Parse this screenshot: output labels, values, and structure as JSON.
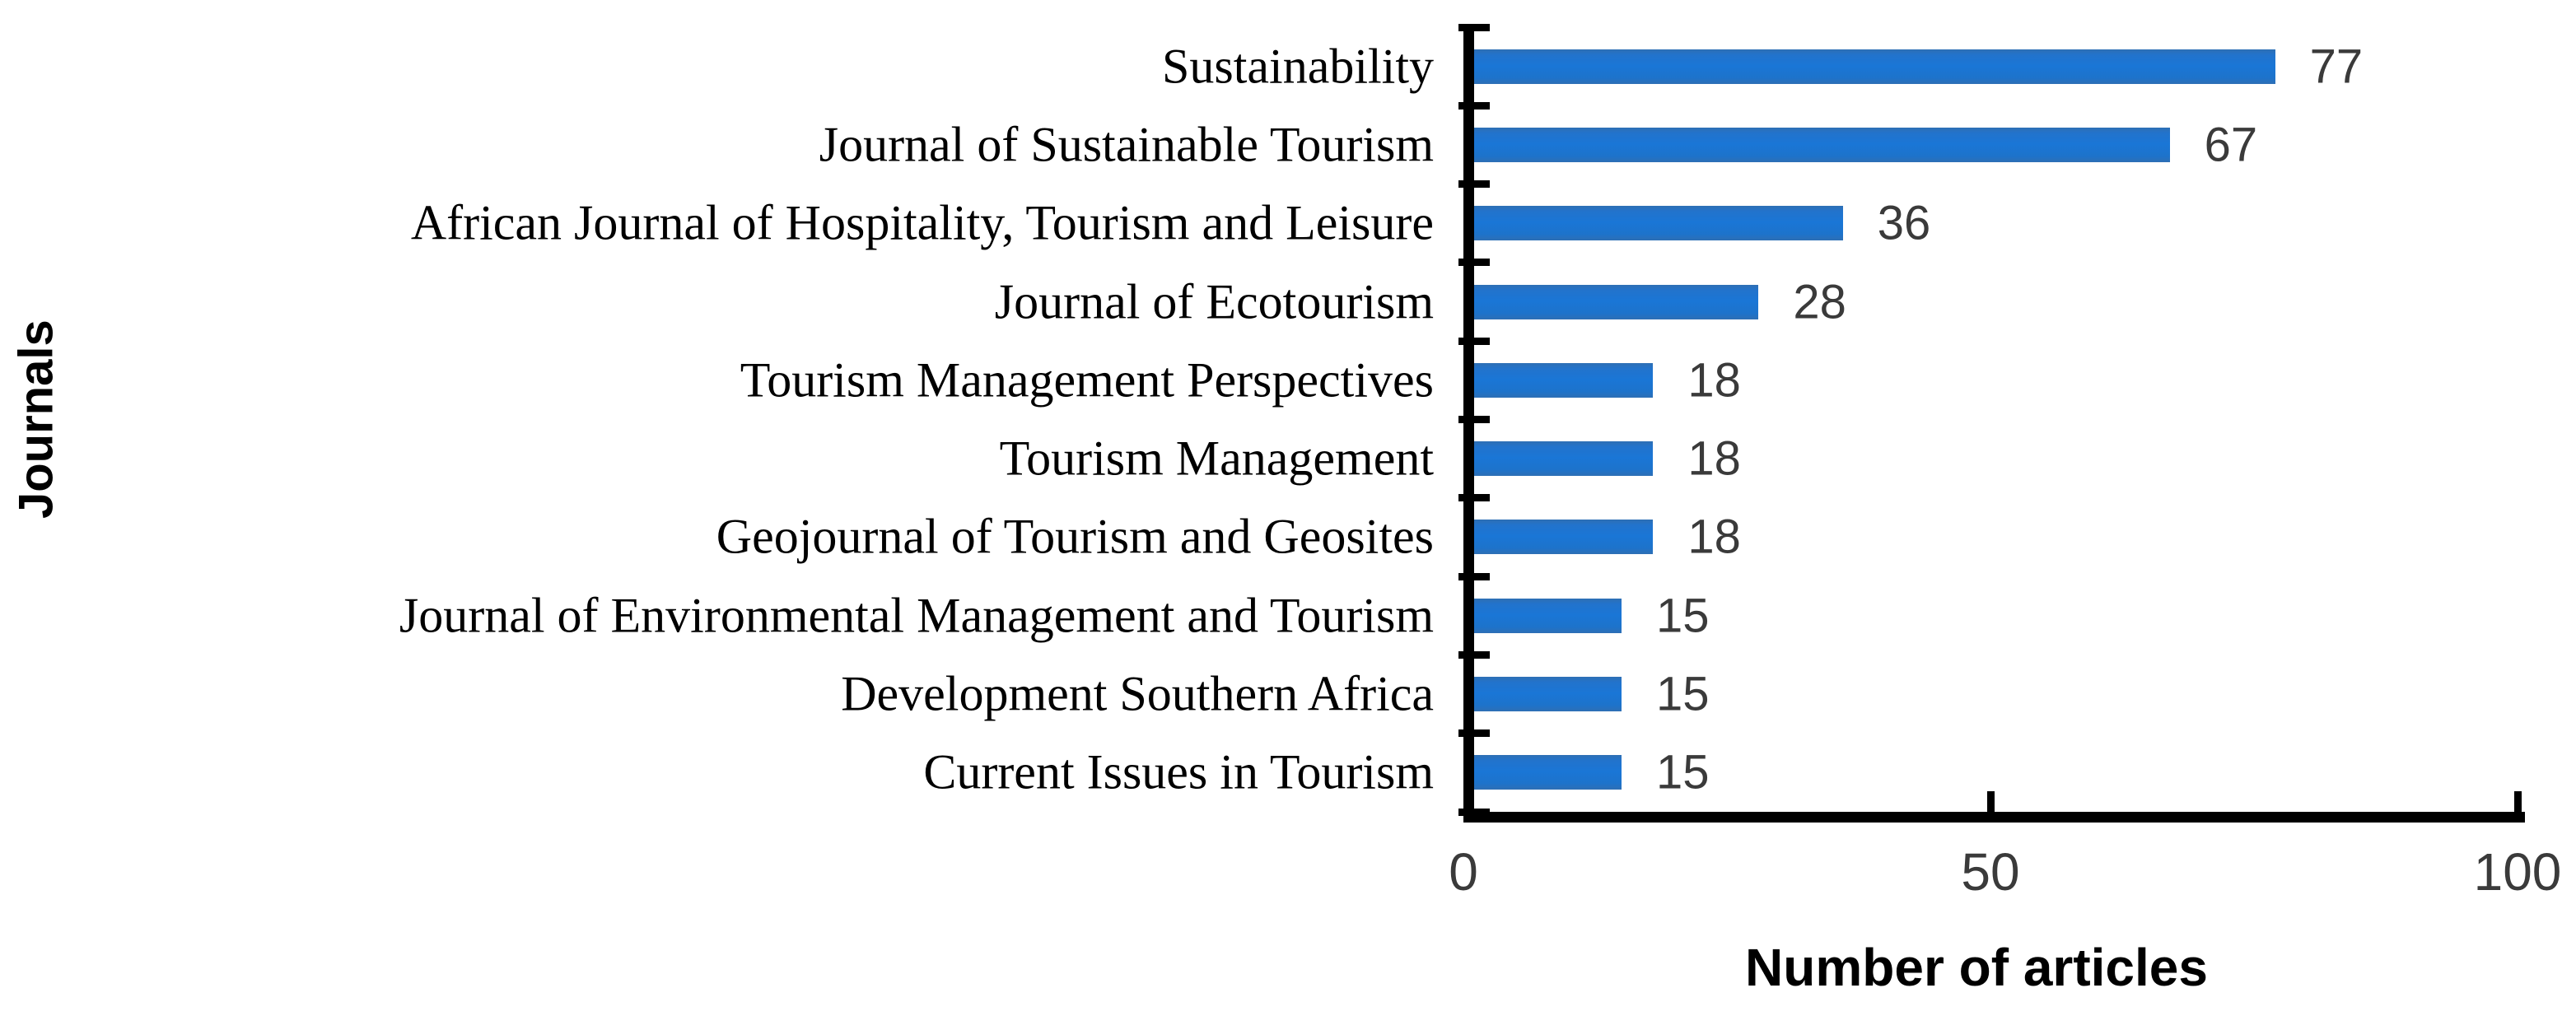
{
  "figure": {
    "background": "#ffffff"
  },
  "chart_data": {
    "type": "bar",
    "orientation": "horizontal",
    "title": "",
    "xlabel": "Number of articles",
    "ylabel": "Journals",
    "categories": [
      "Sustainability",
      "Journal of Sustainable Tourism",
      "African Journal of Hospitality, Tourism and Leisure",
      "Journal of Ecotourism",
      "Tourism Management Perspectives",
      "Tourism Management",
      "Geojournal of Tourism and Geosites",
      "Journal of Environmental Management and Tourism",
      "Development Southern Africa",
      "Current Issues in Tourism"
    ],
    "values": [
      77,
      67,
      36,
      28,
      18,
      18,
      18,
      15,
      15,
      15
    ],
    "data_labels": [
      "77",
      "67",
      "36",
      "28",
      "18",
      "18",
      "18",
      "15",
      "15",
      "15"
    ],
    "xlim": [
      0,
      100
    ],
    "xticks": [
      0,
      50,
      100
    ],
    "xtick_labels": [
      "0",
      "50",
      "100"
    ],
    "grid": false,
    "legend": false,
    "bar_color": "#1b74d0",
    "axis_color": "#000000",
    "tick_label_color": "#3a3a3a",
    "value_label_color": "#3a3a3a",
    "category_label_color": "#000000"
  }
}
